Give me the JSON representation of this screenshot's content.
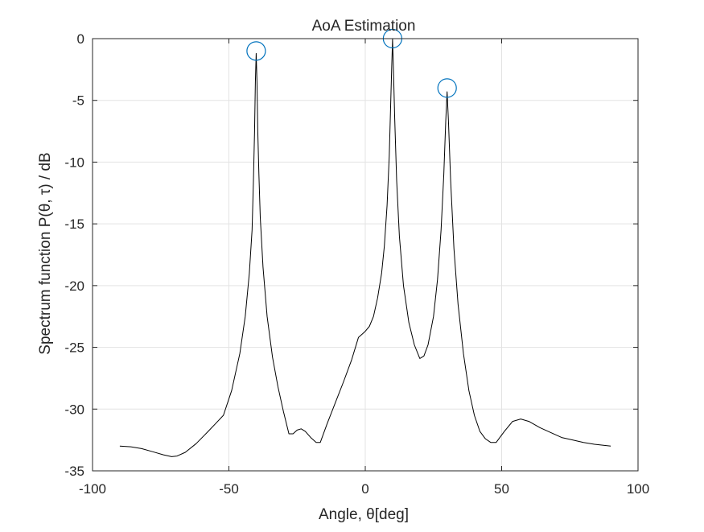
{
  "chart_data": {
    "type": "line",
    "title": "AoA Estimation",
    "xlabel": "Angle, θ[deg]",
    "ylabel": "Spectrum function P(θ, τ)  / dB",
    "xlim": [
      -100,
      100
    ],
    "ylim": [
      -35,
      0
    ],
    "xticks": [
      -100,
      -50,
      0,
      50,
      100
    ],
    "yticks": [
      0,
      -5,
      -10,
      -15,
      -20,
      -25,
      -30,
      -35
    ],
    "grid": true,
    "line_color": "#000000",
    "marker_color": "#0072BD",
    "series": [
      {
        "x": [
          -90,
          -86,
          -82,
          -78,
          -74,
          -71,
          -69,
          -66,
          -62,
          -58,
          -55,
          -52,
          -49,
          -46,
          -44,
          -42.5,
          -41.5,
          -41,
          -40.6,
          -40.3,
          -40,
          -39.7,
          -39.4,
          -39,
          -38.5,
          -37.5,
          -36,
          -34,
          -32,
          -30,
          -28,
          -26.5,
          -25,
          -23.5,
          -22,
          -20,
          -18,
          -16.5,
          -14,
          -11,
          -8,
          -5,
          -2.5,
          -1,
          0,
          1.5,
          3,
          4.5,
          6,
          7,
          8,
          8.8,
          9.3,
          9.7,
          10,
          10.3,
          10.8,
          11.5,
          12.5,
          14,
          16,
          18,
          20,
          21.5,
          23,
          25,
          26.5,
          27.8,
          28.8,
          29.5,
          30,
          30.5,
          31.3,
          32.5,
          34,
          36,
          38,
          40,
          42,
          44,
          46,
          48,
          51,
          54,
          57,
          60,
          64,
          68,
          72,
          76,
          80,
          84,
          88,
          90
        ],
        "y": [
          -33,
          -33.05,
          -33.2,
          -33.45,
          -33.7,
          -33.85,
          -33.8,
          -33.5,
          -32.8,
          -31.9,
          -31.2,
          -30.5,
          -28.5,
          -25.5,
          -22.5,
          -19,
          -15.5,
          -11.5,
          -7.5,
          -3.5,
          -1.2,
          -3.5,
          -7.5,
          -11,
          -14.5,
          -18.5,
          -22.5,
          -25.8,
          -28.2,
          -30.2,
          -32,
          -32,
          -31.7,
          -31.6,
          -31.8,
          -32.3,
          -32.7,
          -32.7,
          -31.2,
          -29.5,
          -27.8,
          -26,
          -24.2,
          -23.9,
          -23.7,
          -23.3,
          -22.5,
          -21,
          -19,
          -16.8,
          -13.5,
          -9.5,
          -5.5,
          -2.2,
          -0.05,
          -2.2,
          -6.5,
          -11.5,
          -16,
          -20,
          -23,
          -24.8,
          -25.9,
          -25.7,
          -24.8,
          -22.5,
          -19.5,
          -15.5,
          -11,
          -6.7,
          -4.3,
          -6.7,
          -11.5,
          -17,
          -21.5,
          -25.5,
          -28.5,
          -30.5,
          -31.8,
          -32.4,
          -32.7,
          -32.7,
          -31.8,
          -31,
          -30.8,
          -31,
          -31.5,
          -31.9,
          -32.3,
          -32.5,
          -32.7,
          -32.85,
          -32.95,
          -33
        ]
      }
    ],
    "peaks": [
      {
        "x": -40,
        "y": -1
      },
      {
        "x": 10,
        "y": 0
      },
      {
        "x": 30,
        "y": -4
      }
    ]
  }
}
